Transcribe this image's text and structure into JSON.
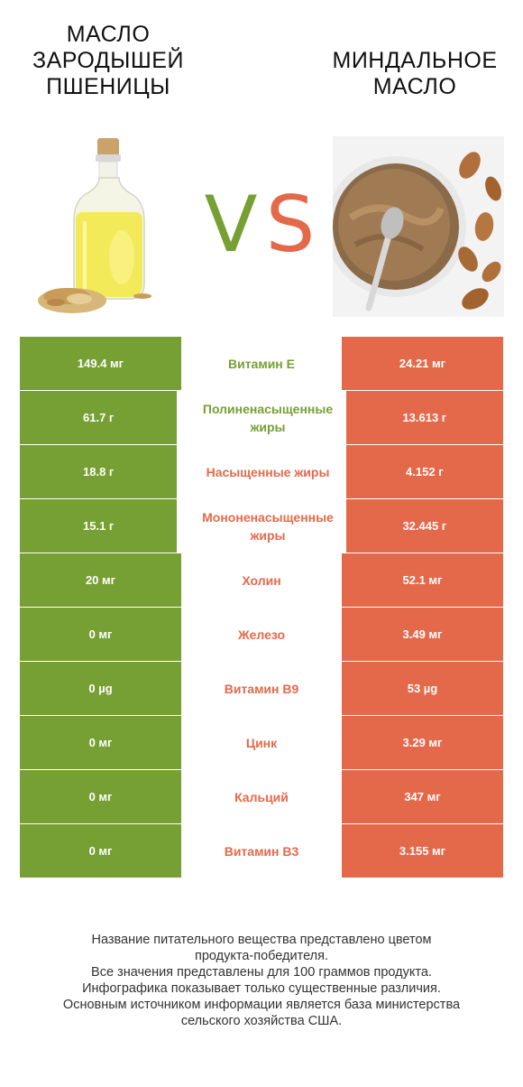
{
  "left_product": {
    "title": "МАСЛО ЗАРОДЫШЕЙ ПШЕНИЦЫ"
  },
  "right_product": {
    "title": "МИНДАЛЬНОЕ МАСЛО"
  },
  "vs": {
    "v": "V",
    "s": "S"
  },
  "colors": {
    "left": "#76a033",
    "right": "#e4694a"
  },
  "rows": [
    {
      "left": "149.4 мг",
      "name": "Витамин E",
      "right": "24.21 мг",
      "winner": "left"
    },
    {
      "left": "61.7 г",
      "name": "Полиненасыщенные жиры",
      "right": "13.613 г",
      "winner": "left"
    },
    {
      "left": "18.8 г",
      "name": "Насыщенные жиры",
      "right": "4.152 г",
      "winner": "right"
    },
    {
      "left": "15.1 г",
      "name": "Мононенасыщенные жиры",
      "right": "32.445 г",
      "winner": "right"
    },
    {
      "left": "20 мг",
      "name": "Холин",
      "right": "52.1 мг",
      "winner": "right"
    },
    {
      "left": "0 мг",
      "name": "Железо",
      "right": "3.49 мг",
      "winner": "right"
    },
    {
      "left": "0 µg",
      "name": "Витамин B9",
      "right": "53 µg",
      "winner": "right"
    },
    {
      "left": "0 мг",
      "name": "Цинк",
      "right": "3.29 мг",
      "winner": "right"
    },
    {
      "left": "0 мг",
      "name": "Кальций",
      "right": "347 мг",
      "winner": "right"
    },
    {
      "left": "0 мг",
      "name": "Витамин B3",
      "right": "3.155 мг",
      "winner": "right"
    }
  ],
  "footer": [
    "Название питательного вещества представлено цветом",
    "продукта-победителя.",
    "Все значения представлены для 100 граммов продукта.",
    "Инфографика показывает только существенные различия.",
    "Основным источником информации является база министерства",
    "сельского хозяйства США."
  ]
}
